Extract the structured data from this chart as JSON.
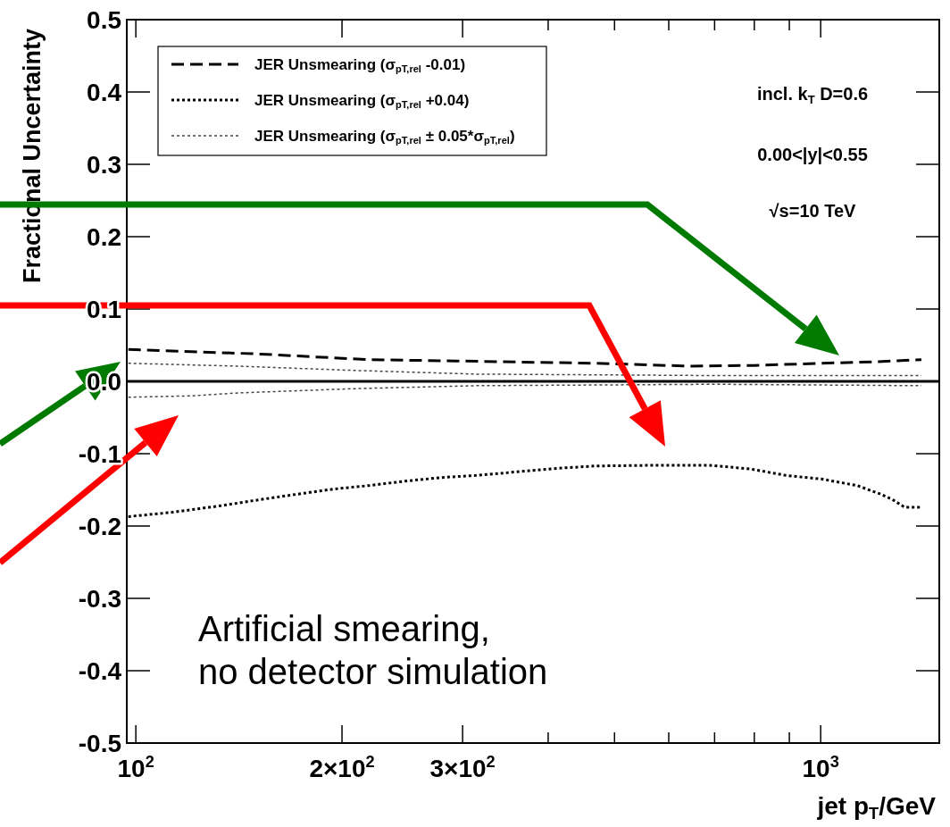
{
  "chart_data": {
    "type": "line",
    "xlabel": "jet p$_{T}$/GeV",
    "ylabel": "Fractional Uncertainty",
    "log": "x",
    "xlim": [
      97,
      1490
    ],
    "ylim": [
      -0.5,
      0.5
    ],
    "xticks": [
      {
        "value": 100,
        "label": "10$^{2}$"
      },
      {
        "value": 200,
        "label": "2×10$^{2}$"
      },
      {
        "value": 300,
        "label": "3×10$^{2}$"
      },
      {
        "value": 400,
        "label": null
      },
      {
        "value": 500,
        "label": null
      },
      {
        "value": 600,
        "label": null
      },
      {
        "value": 700,
        "label": null
      },
      {
        "value": 800,
        "label": null
      },
      {
        "value": 900,
        "label": null
      },
      {
        "value": 1000,
        "label": "10$^{3}$"
      }
    ],
    "yticks": [
      -0.5,
      -0.4,
      -0.3,
      -0.2,
      -0.1,
      {
        "value": 0,
        "label": "0.0"
      },
      0.1,
      0.2,
      0.3,
      0.4,
      0.5
    ],
    "legend": "top left",
    "grid": false,
    "ref_lines": [
      {
        "axis": "y",
        "value": 0,
        "color": "#000000",
        "line_style": "solid"
      }
    ],
    "series": [
      {
        "name": "JER Unsmearing (σ$_{pT,rel}$ -0.01)",
        "color": "#000000",
        "line_style": "dashed",
        "x": [
          97.5,
          150,
          219,
          300,
          469,
          645,
          800,
          1000,
          1200,
          1403
        ],
        "values": [
          0.044,
          0.038,
          0.03,
          0.028,
          0.025,
          0.021,
          0.022,
          0.025,
          0.027,
          0.03
        ]
      },
      {
        "name": "JER Unsmearing (σ$_{pT,rel}$ +0.04)",
        "color": "#000000",
        "line_style": "dotted",
        "x": [
          97.5,
          113,
          133,
          153,
          172,
          194,
          219,
          247,
          279,
          314,
          361,
          416,
          469,
          573,
          686,
          789,
          889,
          1002,
          1130,
          1224,
          1276,
          1326,
          1403
        ],
        "values": [
          -0.187,
          -0.181,
          -0.172,
          -0.163,
          -0.156,
          -0.149,
          -0.144,
          -0.138,
          -0.133,
          -0.13,
          -0.125,
          -0.12,
          -0.117,
          -0.116,
          -0.116,
          -0.121,
          -0.13,
          -0.135,
          -0.144,
          -0.156,
          -0.164,
          -0.174,
          -0.174
        ]
      },
      {
        "name": "JER Unsmearing (σ$_{pT,rel}$ ± 0.05*σ$_{pT,rel}$)",
        "color": "#444444",
        "line_style": "dotted",
        "x": [
          97.5,
          141,
          210,
          314,
          469,
          700,
          1042,
          1403
        ],
        "values": [
          0.025,
          0.021,
          0.015,
          0.01,
          0.009,
          0.008,
          0.008,
          0.008
        ]
      },
      {
        "color": "#444444",
        "line_style": "dotted",
        "x": [
          97.5,
          121,
          141,
          210,
          314,
          469,
          700,
          1403
        ],
        "values": [
          -0.022,
          -0.02,
          -0.016,
          -0.01,
          -0.006,
          -0.005,
          -0.004,
          -0.006
        ]
      }
    ],
    "annotations": [
      "incl. k$_{T}$ D=0.6",
      "0.00<|y|<0.55",
      "√s=10 TeV",
      "Artificial smearing,\nno detector simulation"
    ]
  }
}
